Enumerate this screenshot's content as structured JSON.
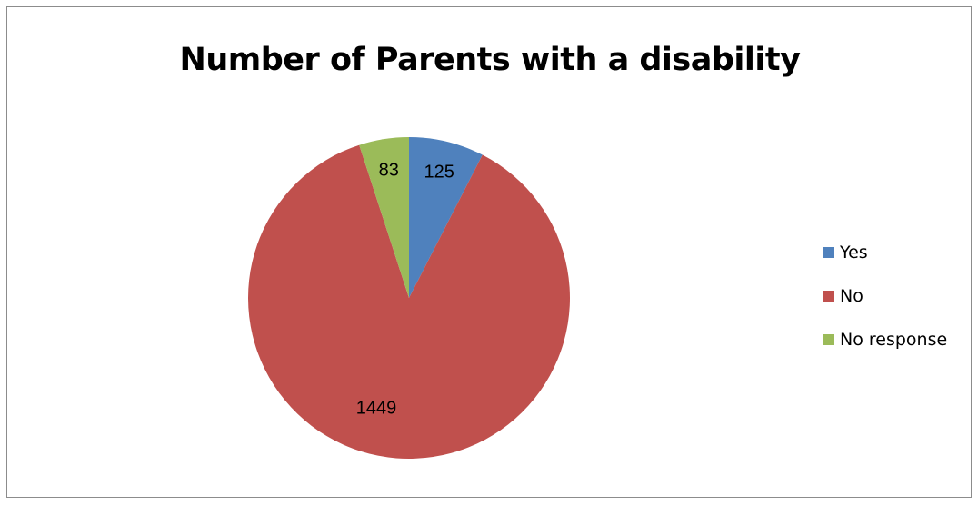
{
  "chart_data": {
    "type": "pie",
    "title": "Number of Parents with a disability",
    "categories": [
      "Yes",
      "No",
      "No response"
    ],
    "values": [
      125,
      1449,
      83
    ],
    "colors": [
      "#4f81bd",
      "#c0504d",
      "#9bbb59"
    ],
    "data_labels": [
      "125",
      "1449",
      "83"
    ],
    "legend_position": "right"
  }
}
